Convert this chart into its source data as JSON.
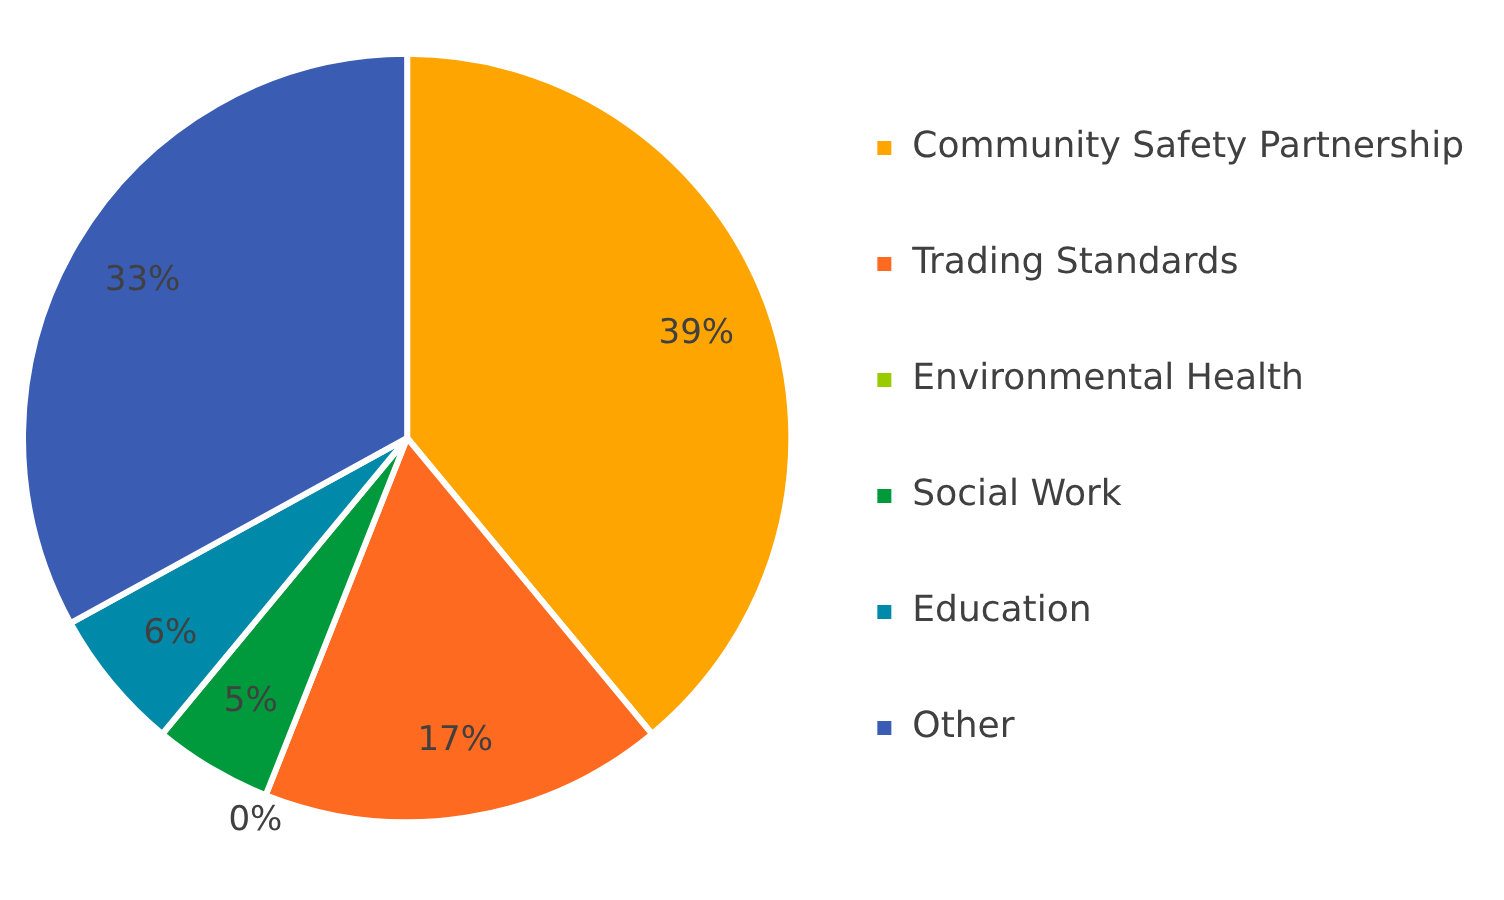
{
  "chart_data": {
    "type": "pie",
    "categories": [
      "Community Safety Partnership",
      "Trading Standards",
      "Environmental Health",
      "Social Work",
      "Education",
      "Other"
    ],
    "values": [
      39,
      17,
      0,
      5,
      6,
      33
    ],
    "colors": [
      "#ffa502",
      "#ff6a21",
      "#99cc00",
      "#009a3d",
      "#0089a8",
      "#3a5cb3"
    ],
    "value_labels": [
      "39%",
      "17%",
      "0%",
      "5%",
      "6%",
      "33%"
    ],
    "legend": "right"
  }
}
